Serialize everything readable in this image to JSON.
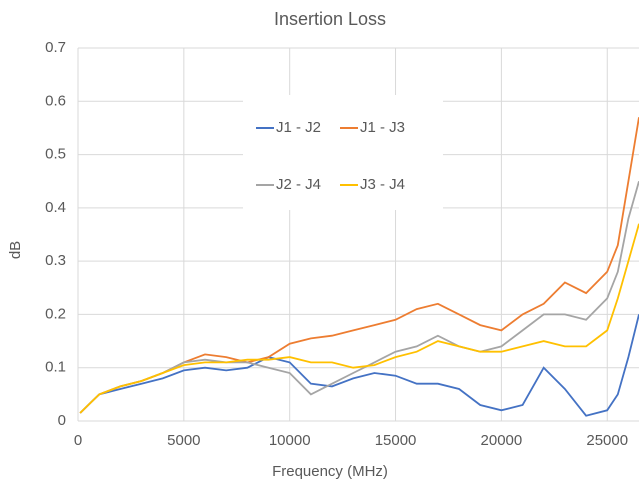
{
  "chart_data": {
    "type": "line",
    "title": "Insertion Loss",
    "x_label": "Frequency (MHz)",
    "y_label": "dB",
    "x": [
      100,
      1000,
      2000,
      3000,
      4000,
      5000,
      6000,
      7000,
      8000,
      9000,
      10000,
      11000,
      12000,
      13000,
      14000,
      15000,
      16000,
      17000,
      18000,
      19000,
      20000,
      21000,
      22000,
      23000,
      24000,
      25000,
      25500,
      26000,
      26500
    ],
    "series": [
      {
        "name": "J1 - J2",
        "color": "#4472c4",
        "values": [
          0.015,
          0.05,
          0.06,
          0.07,
          0.08,
          0.095,
          0.1,
          0.095,
          0.1,
          0.12,
          0.11,
          0.07,
          0.065,
          0.08,
          0.09,
          0.085,
          0.07,
          0.07,
          0.06,
          0.03,
          0.02,
          0.03,
          0.1,
          0.06,
          0.01,
          0.02,
          0.05,
          0.12,
          0.2
        ]
      },
      {
        "name": "J1 - J3",
        "color": "#ed7d31",
        "values": [
          0.015,
          0.05,
          0.065,
          0.075,
          0.09,
          0.11,
          0.125,
          0.12,
          0.11,
          0.12,
          0.145,
          0.155,
          0.16,
          0.17,
          0.18,
          0.19,
          0.21,
          0.22,
          0.2,
          0.18,
          0.17,
          0.2,
          0.22,
          0.26,
          0.24,
          0.28,
          0.33,
          0.45,
          0.57
        ]
      },
      {
        "name": "J2 - J4",
        "color": "#a5a5a5",
        "values": [
          0.015,
          0.05,
          0.065,
          0.075,
          0.09,
          0.11,
          0.115,
          0.11,
          0.11,
          0.1,
          0.09,
          0.05,
          0.07,
          0.09,
          0.11,
          0.13,
          0.14,
          0.16,
          0.14,
          0.13,
          0.14,
          0.17,
          0.2,
          0.2,
          0.19,
          0.23,
          0.28,
          0.38,
          0.45
        ]
      },
      {
        "name": "J3 - J4",
        "color": "#ffc000",
        "values": [
          0.015,
          0.05,
          0.065,
          0.075,
          0.09,
          0.105,
          0.11,
          0.11,
          0.115,
          0.115,
          0.12,
          0.11,
          0.11,
          0.1,
          0.105,
          0.12,
          0.13,
          0.15,
          0.14,
          0.13,
          0.13,
          0.14,
          0.15,
          0.14,
          0.14,
          0.17,
          0.23,
          0.3,
          0.37
        ]
      }
    ],
    "xlim": [
      0,
      26500
    ],
    "xticks": [
      0,
      5000,
      10000,
      15000,
      20000,
      25000
    ],
    "ylim": [
      0,
      0.7
    ],
    "yticks": [
      0,
      0.1,
      0.2,
      0.3,
      0.4,
      0.5,
      0.6,
      0.7
    ],
    "grid": true
  }
}
